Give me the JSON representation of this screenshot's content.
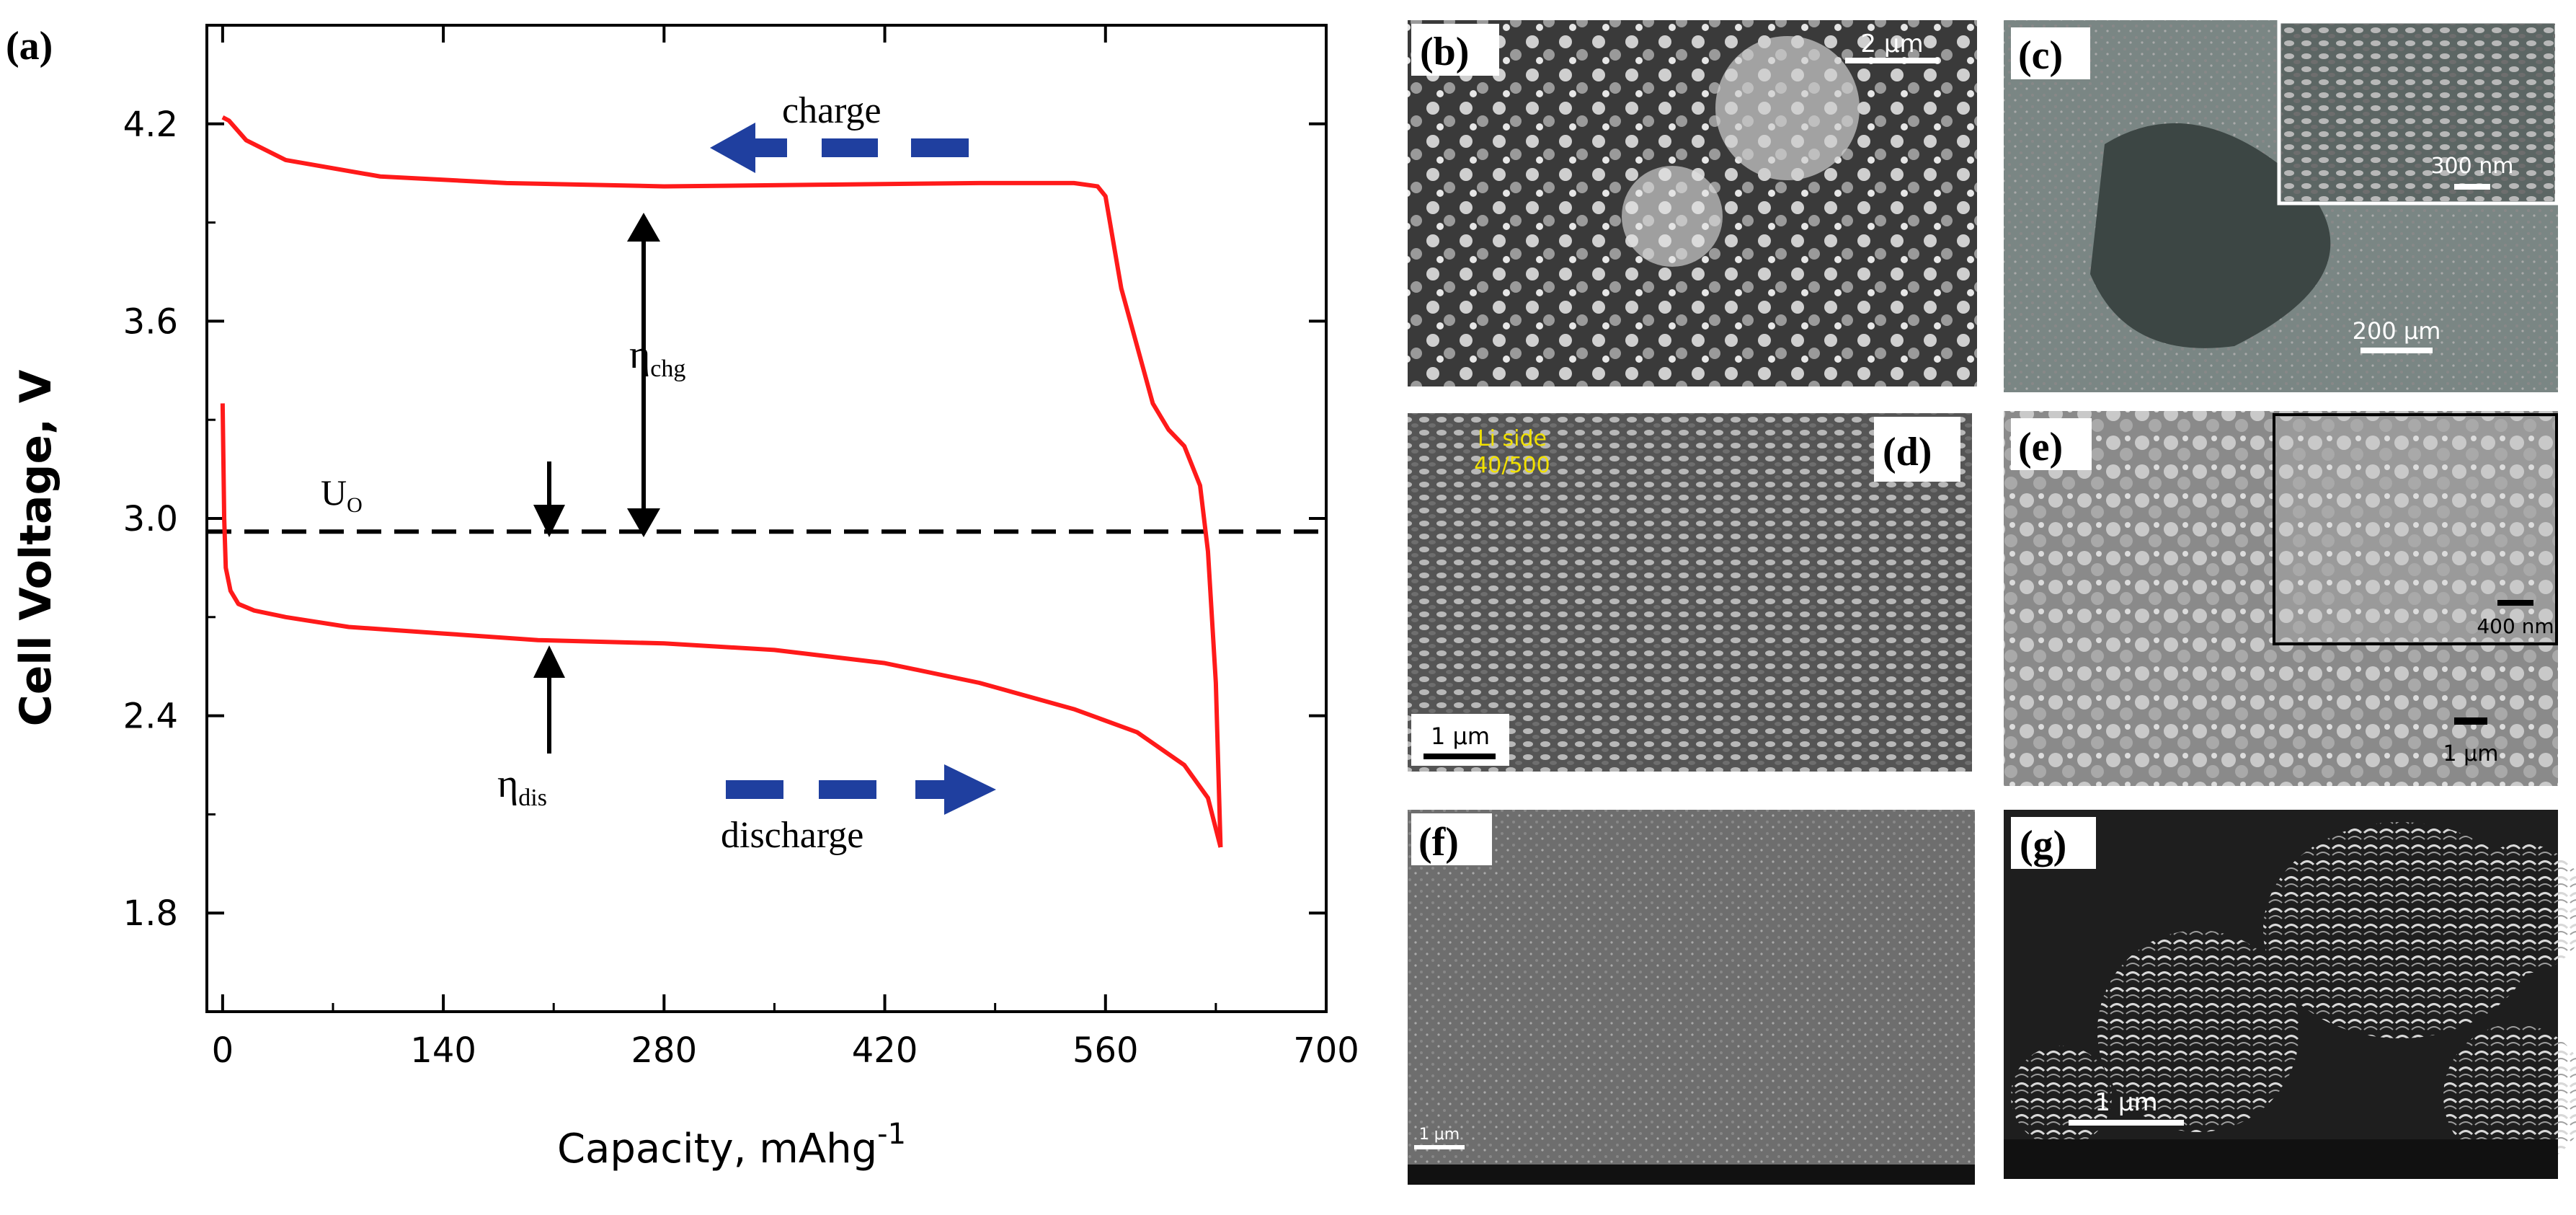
{
  "panel_labels": {
    "a": "(a)",
    "b": "(b)",
    "c": "(c)",
    "d": "(d)",
    "e": "(e)",
    "f": "(f)",
    "g": "(g)"
  },
  "chart_data": {
    "type": "line",
    "title": "",
    "xlabel": "Capacity, mAhg",
    "xlabel_superscript": "-1",
    "ylabel": "Cell Voltage, V",
    "xlim": [
      -10,
      700
    ],
    "ylim": [
      1.5,
      4.5
    ],
    "xticks": [
      0,
      140,
      280,
      420,
      560,
      700
    ],
    "yticks": [
      1.8,
      2.4,
      3.0,
      3.6,
      4.2
    ],
    "xtick_labels": [
      "0",
      "140",
      "280",
      "420",
      "560",
      "700"
    ],
    "ytick_labels": [
      "1.8",
      "2.4",
      "3.0",
      "3.6",
      "4.2"
    ],
    "grid": false,
    "curve_color": "#ff1a1a",
    "arrow_color": "#1f3f9f",
    "series": [
      {
        "role": "charge",
        "x": [
          0,
          4,
          15,
          40,
          100,
          180,
          280,
          380,
          480,
          540,
          555,
          560,
          570,
          590,
          600,
          610,
          620,
          625,
          630,
          633
        ],
        "y": [
          4.22,
          4.21,
          4.15,
          4.09,
          4.04,
          4.02,
          4.01,
          4.015,
          4.02,
          4.02,
          4.01,
          3.98,
          3.7,
          3.35,
          3.27,
          3.22,
          3.1,
          2.9,
          2.5,
          2.0
        ]
      },
      {
        "role": "discharge",
        "x": [
          0,
          1,
          2,
          5,
          10,
          20,
          40,
          80,
          140,
          200,
          280,
          350,
          420,
          480,
          540,
          580,
          610,
          625,
          633
        ],
        "y": [
          3.35,
          3.0,
          2.85,
          2.78,
          2.74,
          2.72,
          2.7,
          2.67,
          2.65,
          2.63,
          2.62,
          2.6,
          2.56,
          2.5,
          2.42,
          2.35,
          2.25,
          2.15,
          2.0
        ]
      }
    ],
    "equilibrium_voltage": 2.96,
    "annotations": {
      "charge": "charge",
      "discharge": "discharge",
      "uo_main": "U",
      "uo_sub": "O",
      "eta": "η",
      "eta_chg_sub": "chg",
      "eta_dis_sub": "dis"
    }
  },
  "micrographs": {
    "b": {
      "scalebar": "2 μm"
    },
    "c": {
      "inset_scalebar": "300 nm",
      "scalebar": "200 μm"
    },
    "d": {
      "caption_line1": "Li side",
      "caption_line2": "40/500",
      "scalebar": "1 μm"
    },
    "e": {
      "inset_scalebar": "400 nm",
      "scalebar": "1 μm"
    },
    "f": {
      "scalebar": "1 μm"
    },
    "g": {
      "scalebar": "1 μm"
    }
  }
}
